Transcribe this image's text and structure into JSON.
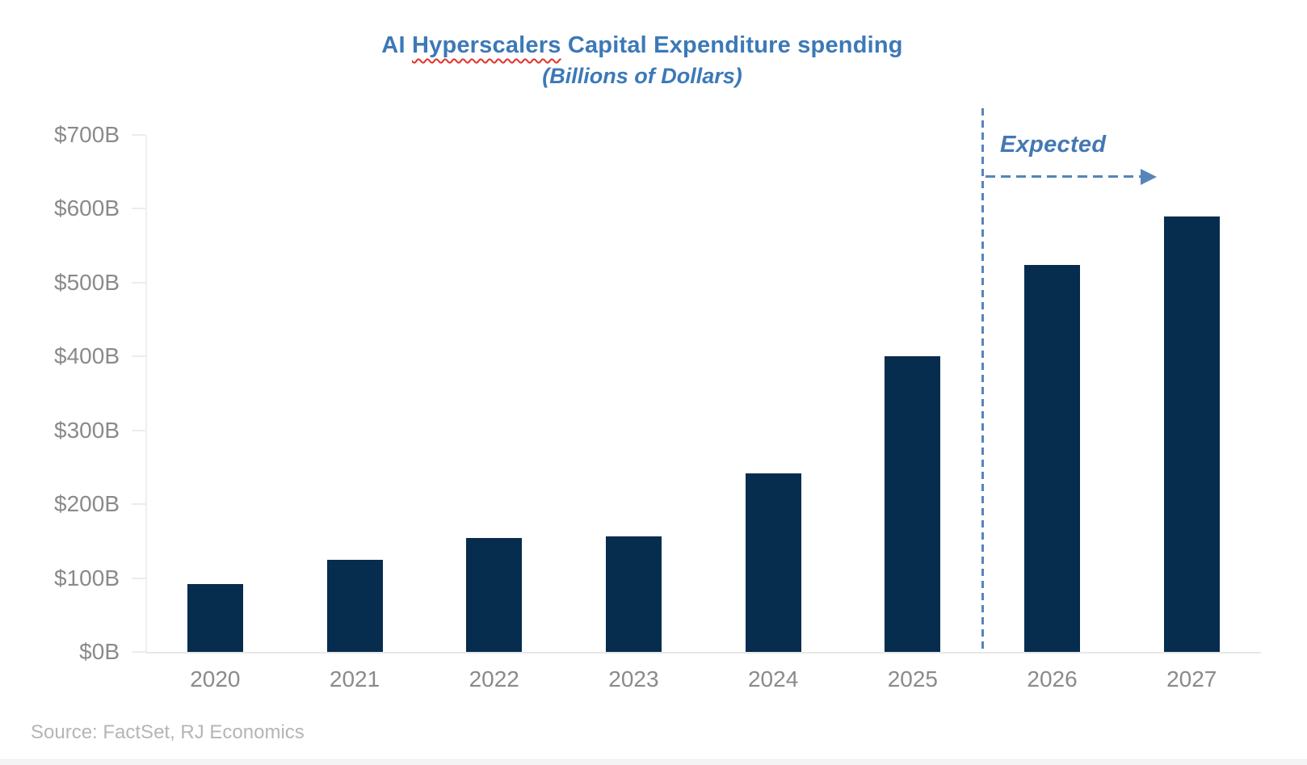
{
  "header": {
    "title_pre": "AI ",
    "title_misspelled": "Hyperscalers",
    "title_post": " Capital Expenditure spending",
    "subtitle": "(Billions of Dollars)"
  },
  "chart_data": {
    "type": "bar",
    "title": "AI Hyperscalers Capital Expenditure spending",
    "subtitle": "(Billions of Dollars)",
    "categories": [
      "2020",
      "2021",
      "2022",
      "2023",
      "2024",
      "2025",
      "2026",
      "2027"
    ],
    "values": [
      92,
      125,
      154,
      156,
      242,
      400,
      524,
      590
    ],
    "unit": "billions of dollars",
    "ylim": [
      0,
      700
    ],
    "y_tick_step": 100,
    "y_tick_labels": [
      "$0B",
      "$100B",
      "$200B",
      "$300B",
      "$400B",
      "$500B",
      "$600B",
      "$700B"
    ],
    "grid": "off",
    "legend": "none",
    "annotation": {
      "label": "Expected",
      "divider_between": [
        "2025",
        "2026"
      ],
      "applies_to": [
        "2026",
        "2027"
      ]
    },
    "colors": {
      "bar": "#062c4e",
      "title_blue": "#3c79b7",
      "annotation_blue": "#5585bb",
      "axis_gray": "#ececec",
      "label_gray": "#8a8a8a"
    }
  },
  "footer": {
    "source": "Source: FactSet, RJ Economics"
  }
}
